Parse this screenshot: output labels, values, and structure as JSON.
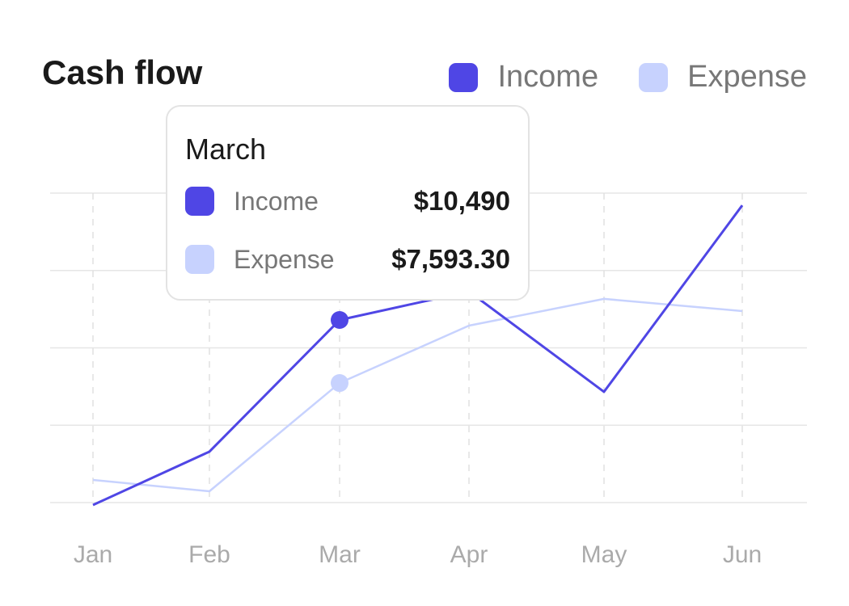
{
  "chart_data": {
    "type": "line",
    "title": "Cash flow",
    "categories": [
      "Jan",
      "Feb",
      "Mar",
      "Apr",
      "May",
      "Jun"
    ],
    "series": [
      {
        "name": "Income",
        "color": "#4f46e5",
        "values": [
          1990,
          4440,
          10490,
          11800,
          7190,
          15760
        ]
      },
      {
        "name": "Expense",
        "color": "#c7d2fe",
        "values": [
          3140,
          2620,
          7593.3,
          10230,
          11460,
          10900
        ]
      }
    ],
    "ylim": [
      2100,
      16320
    ],
    "grid": true,
    "legend": "top-right",
    "highlighted_index": 2
  },
  "tooltip": {
    "month": "March",
    "rows": [
      {
        "label": "Income",
        "value": "$10,490",
        "color": "#4f46e5"
      },
      {
        "label": "Expense",
        "value": "$7,593.30",
        "color": "#c7d2fe"
      }
    ]
  }
}
